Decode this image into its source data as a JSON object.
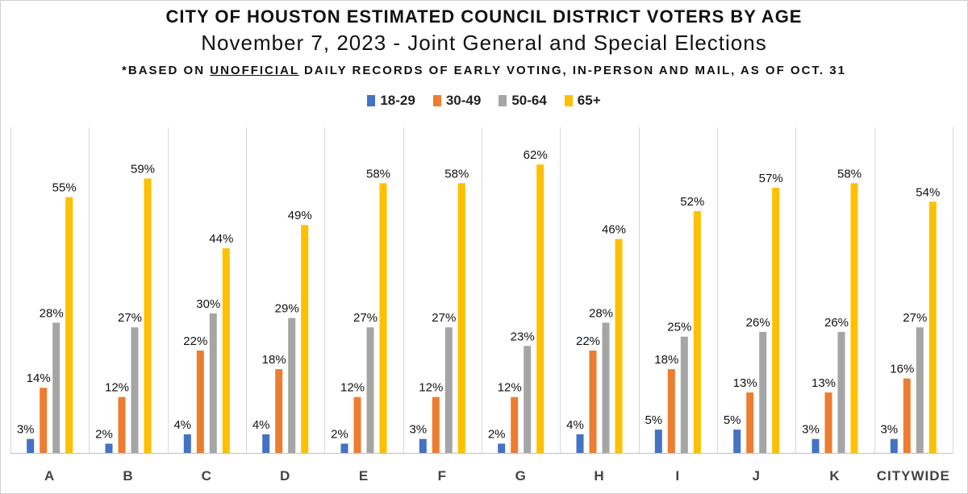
{
  "title": "CITY OF HOUSTON ESTIMATED COUNCIL DISTRICT VOTERS BY AGE",
  "subtitle": "November 7, 2023 - Joint General and Special Elections",
  "note": {
    "prefix": "*BASED ON ",
    "emphasis": "UNOFFICIAL",
    "suffix": " DAILY RECORDS OF EARLY VOTING, IN-PERSON AND MAIL, AS OF OCT. 31"
  },
  "colors": {
    "s1": "#4472C4",
    "s2": "#ED7D31",
    "s3": "#A5A5A5",
    "s4": "#FFC000",
    "grid": "#d9d9d9",
    "axis": "#bfbfbf"
  },
  "chart_data": {
    "type": "bar",
    "title": "CITY OF HOUSTON ESTIMATED COUNCIL DISTRICT VOTERS BY AGE",
    "xlabel": "",
    "ylabel": "",
    "ylim": [
      0,
      70
    ],
    "grid": false,
    "legend": "top-center",
    "categories": [
      "A",
      "B",
      "C",
      "D",
      "E",
      "F",
      "G",
      "H",
      "I",
      "J",
      "K",
      "CITYWIDE"
    ],
    "series": [
      {
        "name": "18-29",
        "values": [
          3,
          2,
          4,
          4,
          2,
          3,
          2,
          4,
          5,
          5,
          3,
          3
        ]
      },
      {
        "name": "30-49",
        "values": [
          14,
          12,
          22,
          18,
          12,
          12,
          12,
          22,
          18,
          13,
          13,
          16
        ]
      },
      {
        "name": "50-64",
        "values": [
          28,
          27,
          30,
          29,
          27,
          27,
          23,
          28,
          25,
          26,
          26,
          27
        ]
      },
      {
        "name": "65+",
        "values": [
          55,
          59,
          44,
          49,
          58,
          58,
          62,
          46,
          52,
          57,
          58,
          54
        ]
      }
    ],
    "value_suffix": "%"
  }
}
